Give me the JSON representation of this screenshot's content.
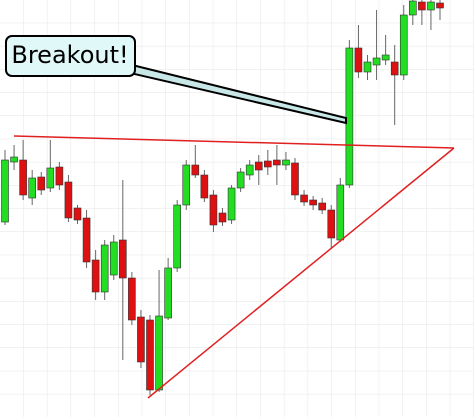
{
  "chart_data": {
    "type": "candlestick",
    "annotations": [
      "Breakout!"
    ],
    "open": [
      195,
      255,
      257,
      219,
      240,
      229,
      250,
      235,
      209,
      199,
      157,
      125,
      142,
      177,
      139,
      100,
      97,
      27,
      99,
      149,
      212,
      252,
      242,
      222,
      204,
      197,
      229,
      242,
      255,
      256,
      257,
      252,
      254,
      222,
      217,
      214,
      207,
      177,
      232,
      369,
      345,
      352,
      357,
      355,
      342,
      402,
      415,
      407,
      414
    ],
    "high": [
      267,
      272,
      277,
      247,
      245,
      277,
      255,
      242,
      212,
      207,
      167,
      177,
      182,
      237,
      145,
      107,
      102,
      147,
      159,
      217,
      257,
      272,
      247,
      227,
      209,
      232,
      249,
      257,
      262,
      267,
      272,
      265,
      259,
      227,
      221,
      219,
      212,
      239,
      377,
      392,
      362,
      407,
      382,
      372,
      412,
      417,
      417,
      417,
      417
    ],
    "low": [
      192,
      247,
      217,
      212,
      222,
      225,
      227,
      195,
      193,
      149,
      117,
      117,
      137,
      57,
      92,
      49,
      22,
      25,
      97,
      145,
      207,
      239,
      215,
      185,
      191,
      193,
      225,
      237,
      232,
      242,
      232,
      247,
      217,
      211,
      207,
      203,
      169,
      175,
      229,
      339,
      337,
      337,
      352,
      292,
      337,
      392,
      392,
      387,
      397
    ],
    "close": [
      257,
      260,
      222,
      239,
      227,
      249,
      232,
      199,
      197,
      155,
      125,
      172,
      175,
      139,
      97,
      55,
      27,
      101,
      149,
      212,
      252,
      242,
      219,
      192,
      195,
      229,
      245,
      252,
      247,
      250,
      252,
      257,
      222,
      215,
      212,
      207,
      179,
      232,
      369,
      345,
      355,
      359,
      362,
      342,
      402,
      416,
      407,
      415,
      409
    ],
    "up_color": "#22dd22",
    "down_color": "#dd1111",
    "ylim": [
      0,
      417
    ]
  }
}
